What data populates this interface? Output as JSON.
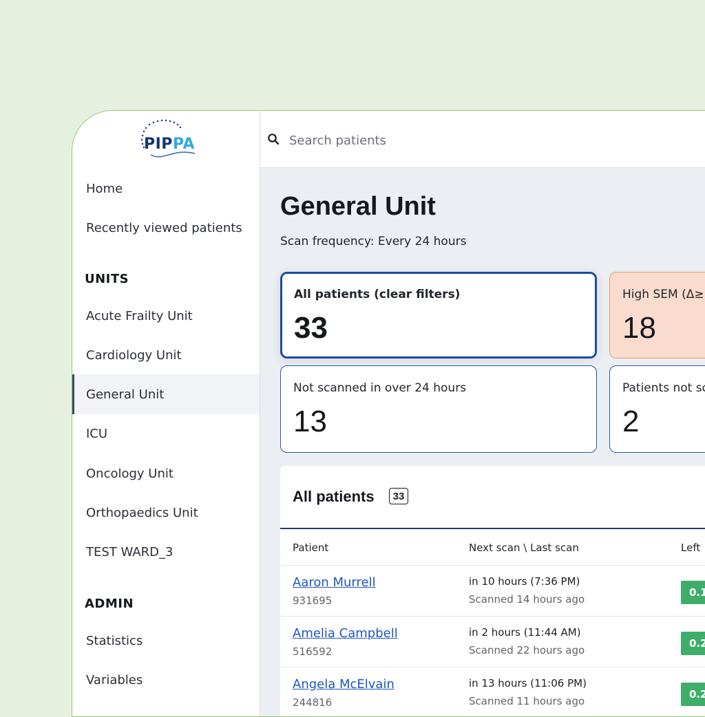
{
  "brand": {
    "logo_text_main": "PIPPA"
  },
  "sidebar": {
    "top_items": [
      {
        "label": "Home"
      },
      {
        "label": "Recently viewed patients"
      }
    ],
    "units_heading": "UNITS",
    "units": [
      {
        "label": "Acute Frailty Unit"
      },
      {
        "label": "Cardiology Unit"
      },
      {
        "label": "General Unit",
        "active": true
      },
      {
        "label": "ICU"
      },
      {
        "label": "Oncology Unit"
      },
      {
        "label": "Orthopaedics Unit"
      },
      {
        "label": "TEST WARD_3"
      }
    ],
    "admin_heading": "ADMIN",
    "admin": [
      {
        "label": "Statistics"
      },
      {
        "label": "Variables"
      }
    ]
  },
  "search": {
    "placeholder": "Search patients",
    "icon": "search-icon"
  },
  "page": {
    "title": "General Unit",
    "subtitle": "Scan frequency: Every 24 hours"
  },
  "cards": [
    {
      "label": "All patients (clear filters)",
      "count": "33",
      "selected": true
    },
    {
      "label": "High SEM (Δ≥",
      "count": "18",
      "color": "#f9dccd"
    },
    {
      "label": "Not scanned in over 24 hours",
      "count": "13"
    },
    {
      "label": "Patients not sc",
      "count": "2"
    }
  ],
  "table": {
    "title": "All patients",
    "count": "33",
    "columns": [
      "Patient",
      "Next scan \\ Last scan",
      "Left"
    ],
    "rows": [
      {
        "name": "Aaron Murrell",
        "id": "931695",
        "next": "in 10 hours (7:36 PM)",
        "last": "Scanned 14 hours ago",
        "value": "0.1"
      },
      {
        "name": "Amelia Campbell",
        "id": "516592",
        "next": "in 2 hours (11:44 AM)",
        "last": "Scanned 22 hours ago",
        "value": "0.2"
      },
      {
        "name": "Angela McElvain",
        "id": "244816",
        "next": "in 13 hours (11:06 PM)",
        "last": "Scanned 11 hours ago",
        "value": "0.2"
      }
    ]
  },
  "colors": {
    "accent": "#1e4b9e",
    "good": "#3fad6a",
    "warn_bg": "#f9dccd",
    "page_bg": "#e6f0df"
  }
}
